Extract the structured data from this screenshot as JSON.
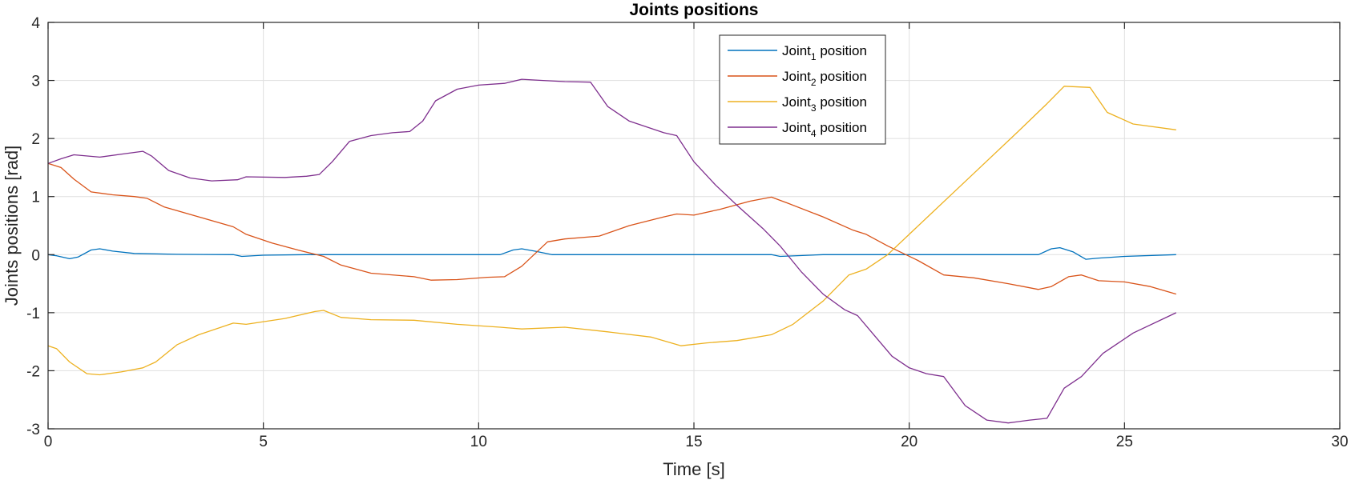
{
  "chart_data": {
    "type": "line",
    "title": "Joints positions",
    "xlabel": "Time [s]",
    "ylabel": "Joints positions [rad]",
    "xlim": [
      0,
      30
    ],
    "ylim": [
      -3,
      4
    ],
    "xticks": [
      0,
      5,
      10,
      15,
      20,
      25,
      30
    ],
    "yticks": [
      -3,
      -2,
      -1,
      0,
      1,
      2,
      3,
      4
    ],
    "grid": true,
    "legend_position": "top-center",
    "series": [
      {
        "name": "Joint1 position",
        "legend": {
          "base": "Joint",
          "sub": "1",
          "rest": " position"
        },
        "color": "#0072BD",
        "points": [
          [
            0,
            0
          ],
          [
            0.2,
            -0.02
          ],
          [
            0.5,
            -0.07
          ],
          [
            0.7,
            -0.04
          ],
          [
            1.0,
            0.08
          ],
          [
            1.2,
            0.1
          ],
          [
            1.5,
            0.06
          ],
          [
            2.0,
            0.02
          ],
          [
            3.0,
            0.005
          ],
          [
            4.3,
            0
          ],
          [
            4.5,
            -0.03
          ],
          [
            5.0,
            -0.01
          ],
          [
            6.0,
            0
          ],
          [
            10.5,
            0
          ],
          [
            10.8,
            0.08
          ],
          [
            11.0,
            0.1
          ],
          [
            11.3,
            0.06
          ],
          [
            11.7,
            0
          ],
          [
            15,
            0
          ],
          [
            16.8,
            0
          ],
          [
            17.0,
            -0.03
          ],
          [
            18.0,
            0
          ],
          [
            23.0,
            0
          ],
          [
            23.3,
            0.1
          ],
          [
            23.5,
            0.12
          ],
          [
            23.8,
            0.05
          ],
          [
            24.1,
            -0.08
          ],
          [
            24.4,
            -0.06
          ],
          [
            25,
            -0.03
          ],
          [
            26.2,
            0
          ]
        ]
      },
      {
        "name": "Joint2 position",
        "legend": {
          "base": "Joint",
          "sub": "2",
          "rest": " position"
        },
        "color": "#D95319",
        "points": [
          [
            0,
            1.57
          ],
          [
            0.3,
            1.5
          ],
          [
            0.6,
            1.3
          ],
          [
            1.0,
            1.08
          ],
          [
            1.5,
            1.03
          ],
          [
            2.0,
            1.0
          ],
          [
            2.3,
            0.97
          ],
          [
            2.7,
            0.82
          ],
          [
            3.5,
            0.65
          ],
          [
            4.3,
            0.48
          ],
          [
            4.6,
            0.35
          ],
          [
            5.2,
            0.2
          ],
          [
            5.8,
            0.08
          ],
          [
            6.4,
            -0.03
          ],
          [
            6.8,
            -0.18
          ],
          [
            7.5,
            -0.32
          ],
          [
            8.5,
            -0.38
          ],
          [
            8.9,
            -0.44
          ],
          [
            9.5,
            -0.43
          ],
          [
            10.2,
            -0.39
          ],
          [
            10.6,
            -0.38
          ],
          [
            11.0,
            -0.2
          ],
          [
            11.6,
            0.22
          ],
          [
            12.0,
            0.27
          ],
          [
            12.8,
            0.32
          ],
          [
            13.5,
            0.5
          ],
          [
            14.3,
            0.65
          ],
          [
            14.6,
            0.7
          ],
          [
            15.0,
            0.68
          ],
          [
            15.6,
            0.78
          ],
          [
            16.3,
            0.92
          ],
          [
            16.8,
            0.99
          ],
          [
            17.2,
            0.88
          ],
          [
            18.0,
            0.65
          ],
          [
            18.7,
            0.42
          ],
          [
            19.0,
            0.35
          ],
          [
            19.5,
            0.15
          ],
          [
            20.2,
            -0.1
          ],
          [
            20.8,
            -0.35
          ],
          [
            21.5,
            -0.4
          ],
          [
            22.3,
            -0.5
          ],
          [
            23.0,
            -0.6
          ],
          [
            23.3,
            -0.55
          ],
          [
            23.7,
            -0.38
          ],
          [
            24.0,
            -0.35
          ],
          [
            24.4,
            -0.45
          ],
          [
            25.0,
            -0.47
          ],
          [
            25.6,
            -0.55
          ],
          [
            26.2,
            -0.68
          ]
        ]
      },
      {
        "name": "Joint3 position",
        "legend": {
          "base": "Joint",
          "sub": "3",
          "rest": " position"
        },
        "color": "#EDB120",
        "points": [
          [
            0,
            -1.57
          ],
          [
            0.2,
            -1.62
          ],
          [
            0.5,
            -1.85
          ],
          [
            0.9,
            -2.05
          ],
          [
            1.2,
            -2.07
          ],
          [
            1.7,
            -2.02
          ],
          [
            2.2,
            -1.95
          ],
          [
            2.5,
            -1.85
          ],
          [
            3.0,
            -1.55
          ],
          [
            3.5,
            -1.38
          ],
          [
            4.3,
            -1.18
          ],
          [
            4.6,
            -1.2
          ],
          [
            5.5,
            -1.1
          ],
          [
            6.2,
            -0.98
          ],
          [
            6.4,
            -0.96
          ],
          [
            6.8,
            -1.08
          ],
          [
            7.5,
            -1.12
          ],
          [
            8.5,
            -1.13
          ],
          [
            9.5,
            -1.2
          ],
          [
            10.5,
            -1.25
          ],
          [
            11.0,
            -1.28
          ],
          [
            12.0,
            -1.25
          ],
          [
            13.0,
            -1.33
          ],
          [
            14.0,
            -1.42
          ],
          [
            14.7,
            -1.57
          ],
          [
            15.3,
            -1.52
          ],
          [
            16.0,
            -1.48
          ],
          [
            16.8,
            -1.38
          ],
          [
            17.3,
            -1.2
          ],
          [
            18.0,
            -0.8
          ],
          [
            18.6,
            -0.35
          ],
          [
            19.0,
            -0.25
          ],
          [
            19.5,
            0
          ],
          [
            20.5,
            0.7
          ],
          [
            21.5,
            1.4
          ],
          [
            22.5,
            2.1
          ],
          [
            23.2,
            2.6
          ],
          [
            23.6,
            2.9
          ],
          [
            24.2,
            2.88
          ],
          [
            24.6,
            2.45
          ],
          [
            25.2,
            2.25
          ],
          [
            26.2,
            2.15
          ]
        ]
      },
      {
        "name": "Joint4 position",
        "legend": {
          "base": "Joint",
          "sub": "4",
          "rest": " position"
        },
        "color": "#7E2F8E",
        "points": [
          [
            0,
            1.57
          ],
          [
            0.3,
            1.65
          ],
          [
            0.6,
            1.72
          ],
          [
            1.2,
            1.68
          ],
          [
            1.8,
            1.74
          ],
          [
            2.2,
            1.78
          ],
          [
            2.4,
            1.7
          ],
          [
            2.8,
            1.45
          ],
          [
            3.3,
            1.32
          ],
          [
            3.8,
            1.27
          ],
          [
            4.4,
            1.29
          ],
          [
            4.6,
            1.34
          ],
          [
            5.5,
            1.33
          ],
          [
            6.0,
            1.35
          ],
          [
            6.3,
            1.38
          ],
          [
            6.6,
            1.6
          ],
          [
            7.0,
            1.95
          ],
          [
            7.5,
            2.05
          ],
          [
            8.0,
            2.1
          ],
          [
            8.4,
            2.12
          ],
          [
            8.7,
            2.3
          ],
          [
            9.0,
            2.65
          ],
          [
            9.5,
            2.85
          ],
          [
            10.0,
            2.92
          ],
          [
            10.6,
            2.95
          ],
          [
            11.0,
            3.02
          ],
          [
            11.5,
            3.0
          ],
          [
            12.0,
            2.98
          ],
          [
            12.6,
            2.97
          ],
          [
            13.0,
            2.55
          ],
          [
            13.5,
            2.3
          ],
          [
            14.3,
            2.1
          ],
          [
            14.6,
            2.05
          ],
          [
            15.0,
            1.6
          ],
          [
            15.5,
            1.2
          ],
          [
            16.0,
            0.85
          ],
          [
            16.6,
            0.45
          ],
          [
            17.0,
            0.15
          ],
          [
            17.5,
            -0.3
          ],
          [
            18.0,
            -0.68
          ],
          [
            18.5,
            -0.95
          ],
          [
            18.8,
            -1.05
          ],
          [
            19.2,
            -1.4
          ],
          [
            19.6,
            -1.75
          ],
          [
            20.0,
            -1.95
          ],
          [
            20.4,
            -2.05
          ],
          [
            20.8,
            -2.1
          ],
          [
            21.3,
            -2.6
          ],
          [
            21.8,
            -2.85
          ],
          [
            22.3,
            -2.9
          ],
          [
            22.8,
            -2.85
          ],
          [
            23.2,
            -2.82
          ],
          [
            23.6,
            -2.3
          ],
          [
            24.0,
            -2.1
          ],
          [
            24.5,
            -1.7
          ],
          [
            25.2,
            -1.35
          ],
          [
            26.2,
            -1.0
          ]
        ]
      }
    ]
  }
}
